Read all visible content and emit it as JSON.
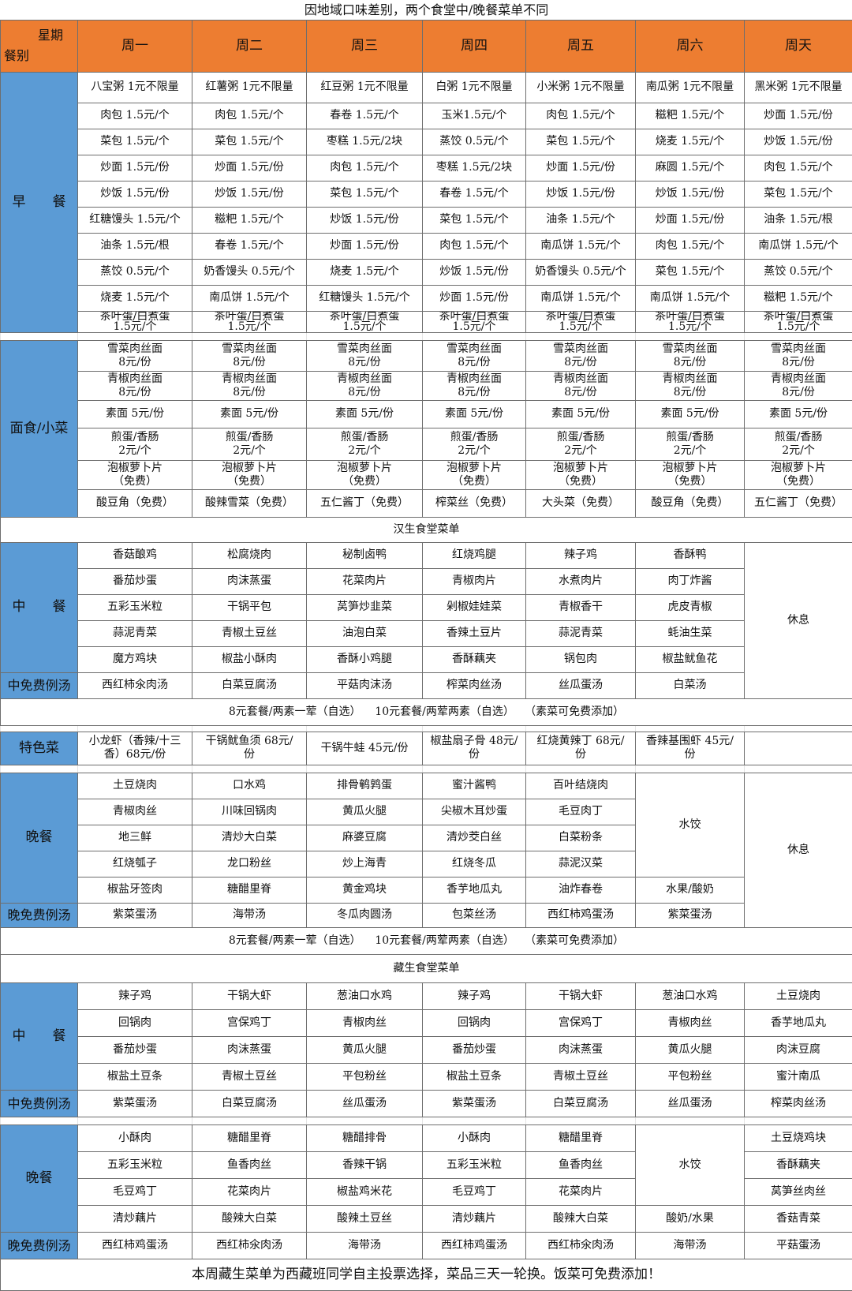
{
  "title": "因地域口味差别，两个食堂中/晚餐菜单不同",
  "header": {
    "corner_top": "星期",
    "corner_bottom": "餐别",
    "days": [
      "周一",
      "周二",
      "周三",
      "周四",
      "周五",
      "周六",
      "周天"
    ]
  },
  "colors": {
    "header": "#ED7D31",
    "label": "#5B9BD5"
  },
  "breakfast": {
    "label": "早　　餐",
    "rows": [
      [
        "八宝粥 1元不限量",
        "红薯粥 1元不限量",
        "红豆粥 1元不限量",
        "白粥 1元不限量",
        "小米粥 1元不限量",
        "南瓜粥 1元不限量",
        "黑米粥 1元不限量"
      ],
      [
        "肉包 1.5元/个",
        "肉包 1.5元/个",
        "春卷 1.5元/个",
        "玉米1.5元/个",
        "肉包 1.5元/个",
        "糍粑 1.5元/个",
        "炒面 1.5元/份"
      ],
      [
        "菜包  1.5元/个",
        "菜包  1.5元/个",
        "枣糕 1.5元/2块",
        "蒸饺 0.5元/个",
        "菜包  1.5元/个",
        "烧麦 1.5元/个",
        "炒饭 1.5元/份"
      ],
      [
        "炒面 1.5元/份",
        "炒面 1.5元/份",
        "肉包 1.5元/个",
        "枣糕 1.5元/2块",
        "炒面 1.5元/份",
        "麻圆 1.5元/个",
        "肉包 1.5元/个"
      ],
      [
        "炒饭 1.5元/份",
        "炒饭 1.5元/份",
        "菜包  1.5元/个",
        "春卷 1.5元/个",
        "炒饭 1.5元/份",
        "炒饭 1.5元/份",
        "菜包  1.5元/个"
      ],
      [
        "红糖馒头 1.5元/个",
        "糍粑 1.5元/个",
        "炒饭 1.5元/份",
        "菜包  1.5元/个",
        "油条 1.5元/个",
        "炒面 1.5元/份",
        "油条 1.5元/根"
      ],
      [
        "油条 1.5元/根",
        "春卷 1.5元/个",
        "炒面 1.5元/份",
        "肉包 1.5元/个",
        "南瓜饼 1.5元/个",
        "肉包 1.5元/个",
        "南瓜饼 1.5元/个"
      ],
      [
        "蒸饺 0.5元/个",
        "奶香馒头 0.5元/个",
        "烧麦 1.5元/个",
        "炒饭 1.5元/份",
        "奶香馒头 0.5元/个",
        "菜包  1.5元/个",
        "蒸饺 0.5元/个"
      ],
      [
        "烧麦 1.5元/个",
        "南瓜饼 1.5元/个",
        "红糖馒头 1.5元/个",
        "炒面 1.5元/份",
        "南瓜饼 1.5元/个",
        "南瓜饼 1.5元/个",
        "糍粑 1.5元/个"
      ],
      [
        "茶叶蛋/白煮蛋\n1.5元/个",
        "茶叶蛋/白煮蛋\n1.5元/个",
        "茶叶蛋/白煮蛋\n1.5元/个",
        "茶叶蛋/白煮蛋\n1.5元/个",
        "茶叶蛋/白煮蛋\n1.5元/个",
        "茶叶蛋/白煮蛋\n1.5元/个",
        "茶叶蛋/白煮蛋\n1.5元/个"
      ]
    ]
  },
  "noodles": {
    "label": "面食/小菜",
    "rows": [
      [
        "雪菜肉丝面\n8元/份",
        "雪菜肉丝面\n8元/份",
        "雪菜肉丝面\n8元/份",
        "雪菜肉丝面\n8元/份",
        "雪菜肉丝面\n8元/份",
        "雪菜肉丝面\n8元/份",
        "雪菜肉丝面\n8元/份"
      ],
      [
        "青椒肉丝面\n8元/份",
        "青椒肉丝面\n8元/份",
        "青椒肉丝面\n8元/份",
        "青椒肉丝面\n8元/份",
        "青椒肉丝面\n8元/份",
        "青椒肉丝面\n8元/份",
        "青椒肉丝面\n8元/份"
      ],
      [
        "素面 5元/份",
        "素面 5元/份",
        "素面 5元/份",
        "素面 5元/份",
        "素面 5元/份",
        "素面 5元/份",
        "素面 5元/份"
      ],
      [
        "煎蛋/香肠\n2元/个",
        "煎蛋/香肠\n2元/个",
        "煎蛋/香肠\n2元/个",
        "煎蛋/香肠\n2元/个",
        "煎蛋/香肠\n2元/个",
        "煎蛋/香肠\n2元/个",
        "煎蛋/香肠\n2元/个"
      ],
      [
        "泡椒萝卜片\n（免费）",
        "泡椒萝卜片\n（免费）",
        "泡椒萝卜片\n（免费）",
        "泡椒萝卜片\n（免费）",
        "泡椒萝卜片\n（免费）",
        "泡椒萝卜片\n（免费）",
        "泡椒萝卜片\n（免费）"
      ],
      [
        "酸豆角（免费）",
        "酸辣雪菜（免费）",
        "五仁酱丁（免费）",
        "榨菜丝（免费）",
        "大头菜（免费）",
        "酸豆角（免费）",
        "五仁酱丁（免费）"
      ]
    ]
  },
  "hansheng": {
    "title": "汉生食堂菜单",
    "lunch": {
      "label": "中　　餐",
      "rows": [
        [
          "香菇酿鸡",
          "松腐烧肉",
          "秘制卤鸭",
          "红烧鸡腿",
          "辣子鸡",
          "香酥鸭"
        ],
        [
          "番茄炒蛋",
          "肉沫蒸蛋",
          "花菜肉片",
          "青椒肉片",
          "水煮肉片",
          "肉丁炸酱"
        ],
        [
          "五彩玉米粒",
          "干锅平包",
          "莴笋炒韭菜",
          "剁椒娃娃菜",
          "青椒香干",
          "虎皮青椒"
        ],
        [
          "蒜泥青菜",
          "青椒土豆丝",
          "油泡白菜",
          "香辣土豆片",
          "蒜泥青菜",
          "蚝油生菜"
        ],
        [
          "魔方鸡块",
          "椒盐小酥肉",
          "香酥小鸡腿",
          "香酥藕夹",
          "锅包肉",
          "椒盐鱿鱼花"
        ]
      ],
      "sunday": "休息",
      "soup_label": "中免费例汤",
      "soups": [
        "西红柿氽肉汤",
        "白菜豆腐汤",
        "平菇肉沫汤",
        "榨菜肉丝汤",
        "丝瓜蛋汤",
        "白菜汤"
      ]
    },
    "set_meal": "8元套餐/两素一荤（自选）    10元套餐/两荤两素（自选）   （素菜可免费添加）",
    "special": {
      "label": "特色菜",
      "items": [
        "小龙虾（香辣/十三\n香）68元/份",
        "干锅鱿鱼须 68元/\n份",
        "干锅牛蛙 45元/份",
        "椒盐扇子骨 48元/\n份",
        "红烧黄辣丁 68元/\n份",
        "香辣基围虾 45元/\n份",
        ""
      ]
    },
    "dinner": {
      "label": "晚餐",
      "rows": [
        [
          "土豆烧肉",
          "口水鸡",
          "排骨鹌鹑蛋",
          "蜜汁酱鸭",
          "百叶结烧肉"
        ],
        [
          "青椒肉丝",
          "川味回锅肉",
          "黄瓜火腿",
          "尖椒木耳炒蛋",
          "毛豆肉丁"
        ],
        [
          "地三鲜",
          "清炒大白菜",
          "麻婆豆腐",
          "清炒茭白丝",
          "白菜粉条"
        ],
        [
          "红烧瓠子",
          "龙口粉丝",
          "炒上海青",
          "红烧冬瓜",
          "蒜泥汉菜"
        ],
        [
          "椒盐牙签肉",
          "糖醋里脊",
          "黄金鸡块",
          "香芋地瓜丸",
          "油炸春卷"
        ]
      ],
      "saturday_main": "水饺",
      "saturday_extra": "水果/酸奶",
      "sunday": "休息",
      "soup_label": "晚免费例汤",
      "soups": [
        "紫菜蛋汤",
        "海带汤",
        "冬瓜肉圆汤",
        "包菜丝汤",
        "西红柿鸡蛋汤",
        "紫菜蛋汤"
      ]
    },
    "set_meal_dinner": "8元套餐/两素一荤（自选）    10元套餐/两荤两素（自选）   （素菜可免费添加）"
  },
  "zangsheng": {
    "title": "藏生食堂菜单",
    "lunch": {
      "label": "中　　餐",
      "rows": [
        [
          "辣子鸡",
          "干锅大虾",
          "葱油口水鸡",
          "辣子鸡",
          "干锅大虾",
          "葱油口水鸡",
          "土豆烧肉"
        ],
        [
          "回锅肉",
          "宫保鸡丁",
          "青椒肉丝",
          "回锅肉",
          "宫保鸡丁",
          "青椒肉丝",
          "香芋地瓜丸"
        ],
        [
          "番茄炒蛋",
          "肉沫蒸蛋",
          "黄瓜火腿",
          "番茄炒蛋",
          "肉沫蒸蛋",
          "黄瓜火腿",
          "肉沫豆腐"
        ],
        [
          "椒盐土豆条",
          "青椒土豆丝",
          "平包粉丝",
          "椒盐土豆条",
          "青椒土豆丝",
          "平包粉丝",
          "蜜汁南瓜"
        ]
      ],
      "soup_label": "中免费例汤",
      "soups": [
        "紫菜蛋汤",
        "白菜豆腐汤",
        "丝瓜蛋汤",
        "紫菜蛋汤",
        "白菜豆腐汤",
        "丝瓜蛋汤",
        "榨菜肉丝汤"
      ]
    },
    "dinner": {
      "label": "晚餐",
      "rows": [
        [
          "小酥肉",
          "糖醋里脊",
          "糖醋排骨",
          "小酥肉",
          "糖醋里脊",
          "土豆烧鸡块"
        ],
        [
          "五彩玉米粒",
          "鱼香肉丝",
          "香辣干锅",
          "五彩玉米粒",
          "鱼香肉丝",
          "香酥藕夹"
        ],
        [
          "毛豆鸡丁",
          "花菜肉片",
          "椒盐鸡米花",
          "毛豆鸡丁",
          "花菜肉片",
          "莴笋丝肉丝"
        ],
        [
          "清炒藕片",
          "酸辣大白菜",
          "酸辣土豆丝",
          "清炒藕片",
          "酸辣大白菜",
          "香菇青菜"
        ]
      ],
      "saturday_main": "水饺",
      "saturday_extra": "酸奶/水果",
      "soup_label": "晚免费例汤",
      "soups": [
        "西红柿鸡蛋汤",
        "西红柿氽肉汤",
        "海带汤",
        "西红柿鸡蛋汤",
        "西红柿氽肉汤",
        "海带汤",
        "平菇蛋汤"
      ]
    }
  },
  "footer": "本周藏生菜单为西藏班同学自主投票选择，菜品三天一轮换。饭菜可免费添加！"
}
